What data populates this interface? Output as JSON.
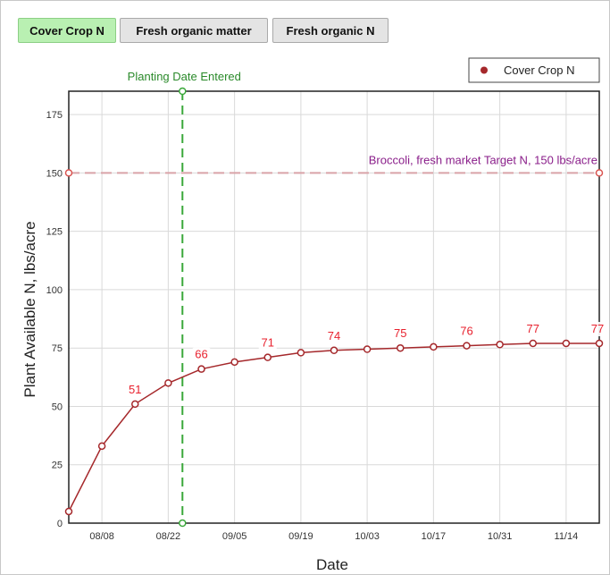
{
  "tabs": [
    {
      "label": "Cover Crop N",
      "active": true
    },
    {
      "label": "Fresh organic matter",
      "active": false
    },
    {
      "label": "Fresh organic N",
      "active": false
    }
  ],
  "colors": {
    "series": "#a5282b",
    "label_text": "#e8212e",
    "target": "#d9a3a8",
    "target_text": "#8a1e8a",
    "planting": "#3aa83a",
    "planting_text": "#2a8a2a"
  },
  "chart_data": {
    "type": "line",
    "xlabel": "Date",
    "ylabel": "Plant Available N, lbs/acre",
    "ylim": [
      0,
      185
    ],
    "yticks": [
      0,
      25,
      50,
      75,
      100,
      125,
      150,
      175
    ],
    "x_tick_labels": [
      "08/08",
      "08/22",
      "09/05",
      "09/19",
      "10/03",
      "10/17",
      "10/31",
      "11/14"
    ],
    "grid": true,
    "legend": {
      "position": "top-right",
      "entries": [
        "Cover Crop N"
      ]
    },
    "series": [
      {
        "name": "Cover Crop N",
        "points": [
          {
            "date": "08/01",
            "value": 5
          },
          {
            "date": "08/08",
            "value": 33
          },
          {
            "date": "08/15",
            "value": 51
          },
          {
            "date": "08/22",
            "value": 60
          },
          {
            "date": "08/29",
            "value": 66
          },
          {
            "date": "09/05",
            "value": 69
          },
          {
            "date": "09/12",
            "value": 71
          },
          {
            "date": "09/19",
            "value": 73
          },
          {
            "date": "09/26",
            "value": 74
          },
          {
            "date": "10/03",
            "value": 74.5
          },
          {
            "date": "10/10",
            "value": 75
          },
          {
            "date": "10/17",
            "value": 75.5
          },
          {
            "date": "10/24",
            "value": 76
          },
          {
            "date": "10/31",
            "value": 76.5
          },
          {
            "date": "11/07",
            "value": 77
          },
          {
            "date": "11/14",
            "value": 77
          },
          {
            "date": "11/21",
            "value": 77
          }
        ],
        "data_labels": [
          {
            "date": "08/15",
            "text": "51"
          },
          {
            "date": "08/29",
            "text": "66"
          },
          {
            "date": "09/12",
            "text": "71"
          },
          {
            "date": "09/26",
            "text": "74"
          },
          {
            "date": "10/10",
            "text": "75"
          },
          {
            "date": "10/24",
            "text": "76"
          },
          {
            "date": "11/07",
            "text": "77"
          },
          {
            "date": "11/21",
            "text": "77"
          }
        ]
      }
    ],
    "target_line": {
      "value": 150,
      "label": "Broccoli, fresh market Target N, 150 lbs/acre"
    },
    "planting_line": {
      "date": "08/25",
      "label": "Planting Date Entered"
    }
  }
}
